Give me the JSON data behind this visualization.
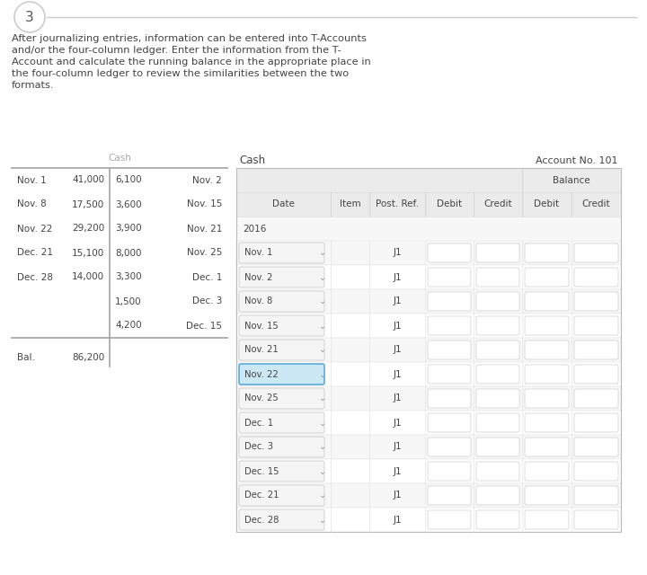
{
  "title_number": "3",
  "description_lines": [
    "After journalizing entries, information can be entered into T-Accounts",
    "and/or the four-column ledger. Enter the information from the T-",
    "Account and calculate the running balance in the appropriate place in",
    "the four-column ledger to review the similarities between the two",
    "formats."
  ],
  "t_account_title": "Cash",
  "t_account_left": [
    [
      "Nov. 1",
      "41,000"
    ],
    [
      "Nov. 8",
      "17,500"
    ],
    [
      "Nov. 22",
      "29,200"
    ],
    [
      "Dec. 21",
      "15,100"
    ],
    [
      "Dec. 28",
      "14,000"
    ]
  ],
  "t_account_right": [
    [
      "6,100",
      "Nov. 2"
    ],
    [
      "3,600",
      "Nov. 15"
    ],
    [
      "3,900",
      "Nov. 21"
    ],
    [
      "8,000",
      "Nov. 25"
    ],
    [
      "3,300",
      "Dec. 1"
    ],
    [
      "1,500",
      "Dec. 3"
    ],
    [
      "4,200",
      "Dec. 15"
    ]
  ],
  "t_account_bal_label": "Bal.",
  "t_account_bal_value": "86,200",
  "ledger_title": "Cash",
  "ledger_account_no": "Account No. 101",
  "ledger_year": "2016",
  "ledger_dates": [
    "Nov. 1",
    "Nov. 2",
    "Nov. 8",
    "Nov. 15",
    "Nov. 21",
    "Nov. 22",
    "Nov. 25",
    "Dec. 1",
    "Dec. 3",
    "Dec. 15",
    "Dec. 21",
    "Dec. 28"
  ],
  "ledger_post_ref": "J1",
  "highlighted_row": 5,
  "balance_header": "Balance",
  "bg_color": "#ffffff",
  "table_header_bg": "#ebebeb",
  "highlight_color": "#cde8f5",
  "highlight_border": "#5aabda",
  "border_color": "#cccccc",
  "row_sep_color": "#e0e0e0",
  "text_color": "#444444",
  "light_text": "#aaaaaa",
  "circle_border": "#cccccc",
  "input_box_color": "#f0f0f0",
  "input_box_border": "#cccccc"
}
